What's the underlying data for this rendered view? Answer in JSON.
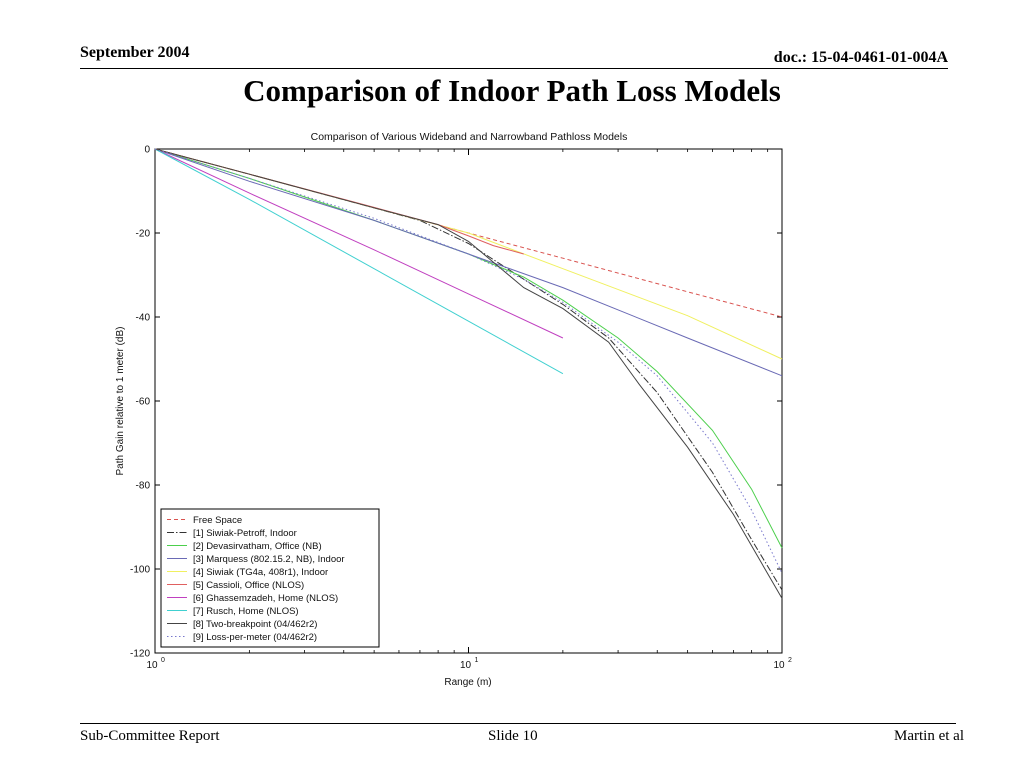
{
  "header": {
    "date": "September 2004",
    "doc_id": "doc.: 15-04-0461-01-004A"
  },
  "slide_title": "Comparison of Indoor Path Loss Models",
  "footer": {
    "left": "Sub-Committee Report",
    "center": "Slide 10",
    "right": "Martin et al"
  },
  "chart_data": {
    "type": "line",
    "title": "Comparison of Various Wideband and Narrowband Pathloss Models",
    "xlabel": "Range (m)",
    "ylabel": "Path Gain relative to 1 meter (dB)",
    "xscale": "log",
    "xlim": [
      1,
      100
    ],
    "ylim": [
      -120,
      0
    ],
    "x_ticks": [
      {
        "value": 1,
        "base": "10",
        "exp": "0"
      },
      {
        "value": 10,
        "base": "10",
        "exp": "1"
      },
      {
        "value": 100,
        "base": "10",
        "exp": "2"
      }
    ],
    "y_ticks": [
      0,
      -20,
      -40,
      -60,
      -80,
      -100,
      -120
    ],
    "grid": false,
    "legend_position": "bottom-left",
    "series": [
      {
        "name": "Free Space",
        "color": "#d9534f",
        "dash": "4,3",
        "x": [
          1,
          2,
          5,
          10,
          20,
          50,
          100
        ],
        "y": [
          0,
          -6,
          -14,
          -20,
          -26,
          -34,
          -40
        ]
      },
      {
        "name": "[1] Siwiak-Petroff, Indoor",
        "color": "#333333",
        "dash": "7,2,1.5,2",
        "x": [
          1,
          2,
          4.2,
          7,
          10,
          15,
          20,
          28,
          40,
          60,
          80,
          100
        ],
        "y": [
          0,
          -6,
          -12.5,
          -17,
          -22.5,
          -31,
          -37,
          -45,
          -58,
          -77,
          -93,
          -105
        ]
      },
      {
        "name": "[2] Devasirvatham, Office (NB)",
        "color": "#4ccf4c",
        "dash": "",
        "x": [
          1,
          2,
          5,
          10,
          15,
          20,
          30,
          40,
          60,
          80,
          100
        ],
        "y": [
          0,
          -7,
          -17,
          -25,
          -30.5,
          -36,
          -45,
          -53,
          -67,
          -81,
          -95
        ]
      },
      {
        "name": "[3] Marquess (802.15.2, NB), Indoor",
        "color": "#6a6ab5",
        "dash": "",
        "x": [
          1,
          2,
          5,
          10,
          20,
          50,
          100
        ],
        "y": [
          0,
          -7.7,
          -17,
          -25,
          -33,
          -45,
          -54
        ]
      },
      {
        "name": "[4] Siwiak (TG4a, 408r1), Indoor",
        "color": "#f0f060",
        "dash": "",
        "x": [
          1,
          2,
          5,
          10,
          20,
          50,
          100
        ],
        "y": [
          0,
          -6,
          -14,
          -20,
          -28.5,
          -39.7,
          -50
        ]
      },
      {
        "name": "[5] Cassioli, Office (NLOS)",
        "color": "#e06060",
        "dash": "",
        "x": [
          1,
          2,
          5,
          8,
          10,
          12,
          15
        ],
        "y": [
          0,
          -6,
          -13.9,
          -18,
          -20.7,
          -23,
          -25
        ]
      },
      {
        "name": "[6] Ghassemzadeh, Home (NLOS)",
        "color": "#c040c0",
        "dash": "",
        "x": [
          1,
          2,
          5,
          10,
          20
        ],
        "y": [
          0,
          -10.5,
          -24,
          -34.5,
          -45
        ]
      },
      {
        "name": "[7] Rusch, Home (NLOS)",
        "color": "#40d0d0",
        "dash": "",
        "x": [
          1,
          2,
          5,
          10,
          20
        ],
        "y": [
          0,
          -12,
          -28.5,
          -41,
          -53.5
        ]
      },
      {
        "name": "[8] Two-breakpoint (04/462r2)",
        "color": "#444444",
        "dash": "",
        "x": [
          1,
          2,
          5,
          8,
          10,
          15,
          20,
          28,
          35,
          50,
          70,
          100
        ],
        "y": [
          0,
          -6,
          -14,
          -18,
          -22,
          -33,
          -38,
          -46,
          -56,
          -71,
          -87,
          -107
        ]
      },
      {
        "name": "[9] Loss-per-meter (04/462r2)",
        "color": "#7777cc",
        "dash": "1.5,2.5",
        "x": [
          1,
          2,
          5,
          10,
          15,
          20,
          30,
          40,
          60,
          80,
          100
        ],
        "y": [
          0,
          -7,
          -16.5,
          -25,
          -31,
          -36.5,
          -46,
          -54,
          -70,
          -86,
          -101
        ]
      }
    ]
  }
}
